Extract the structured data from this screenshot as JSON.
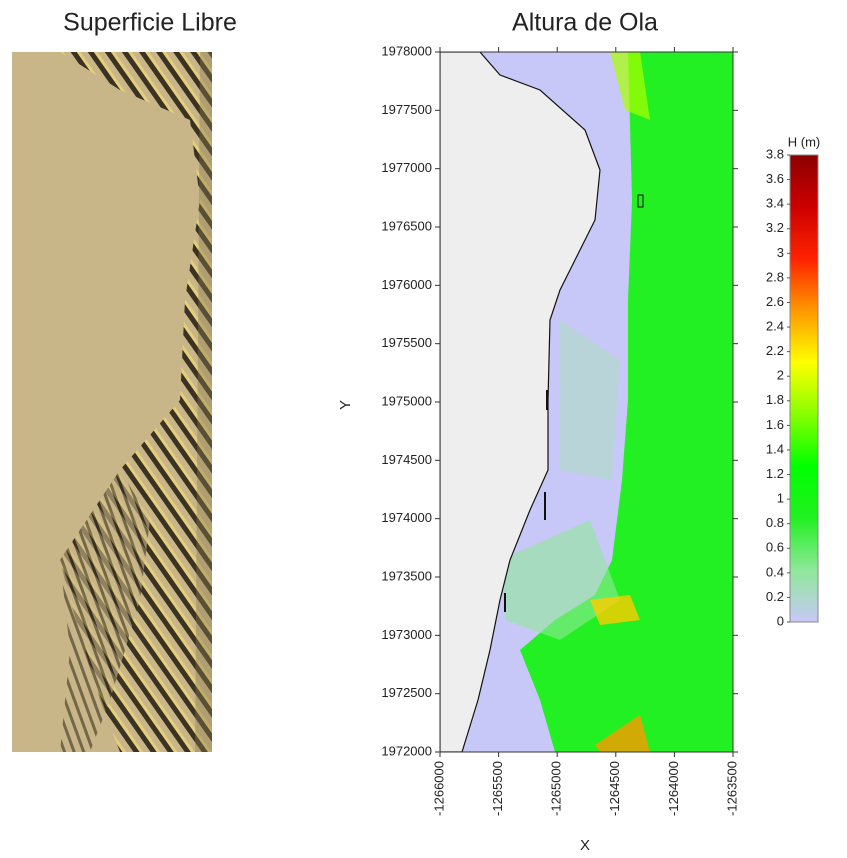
{
  "chart_data": [
    {
      "type": "image",
      "title": "Superficie Libre"
    },
    {
      "type": "heatmap",
      "title": "Altura de Ola",
      "x_label": "X",
      "y_label": "Y",
      "xlim": [
        -1266000,
        -1263500
      ],
      "xticks": [
        -1266000,
        -1265500,
        -1265000,
        -1264500,
        -1264000,
        -1263500
      ],
      "ylim": [
        1972000,
        1978000
      ],
      "yticks": [
        1972000,
        1972500,
        1973000,
        1973500,
        1974000,
        1974500,
        1975000,
        1975500,
        1976000,
        1976500,
        1977000,
        1977500,
        1978000
      ],
      "colorbar": {
        "label": "H (m)",
        "lim": [
          0,
          3.8
        ],
        "ticks": [
          0,
          0.2,
          0.4,
          0.6,
          0.8,
          1,
          1.2,
          1.4,
          1.6,
          1.8,
          2,
          2.2,
          2.4,
          2.6,
          2.8,
          3,
          3.2,
          3.4,
          3.6,
          3.8
        ],
        "colors": [
          "#c8c8f8",
          "#8fe89a",
          "#22f022",
          "#00ff00",
          "#88ff00",
          "#ffff00",
          "#ff9900",
          "#ff2200",
          "#cc0000",
          "#8b0000"
        ]
      }
    }
  ]
}
